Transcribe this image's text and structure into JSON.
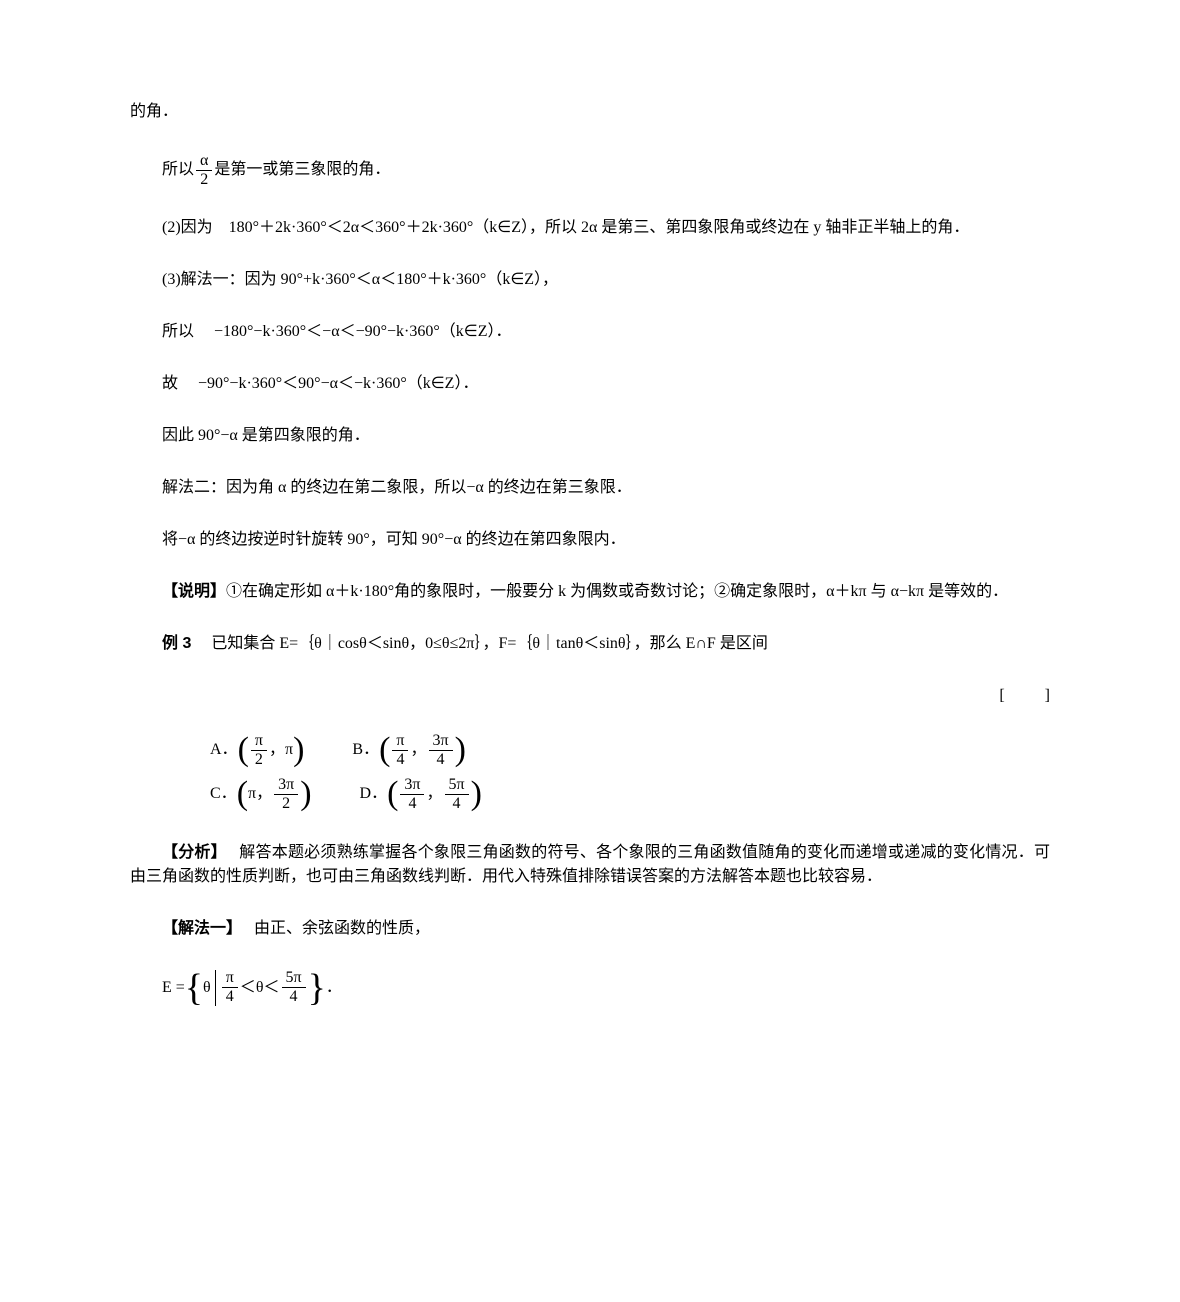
{
  "p1": "的角．",
  "mb1_prefix": "所以",
  "mb1_frac_num": "α",
  "mb1_frac_den": "2",
  "mb1_suffix": "是第一或第三象限的角．",
  "p2": "(2)因为　180°＋2k·360°＜2α＜360°＋2k·360°（k∈Z），所以 2α 是第三、第四象限角或终边在 y 轴非正半轴上的角．",
  "p3": "(3)解法一：因为 90°+k·360°＜α＜180°＋k·360°（k∈Z），",
  "p4": "所以　 −180°−k·360°＜−α＜−90°−k·360°（k∈Z）．",
  "p5": "故　 −90°−k·360°＜90°−α＜−k·360°（k∈Z）．",
  "p6": "因此 90°−α 是第四象限的角．",
  "p7": "解法二：因为角 α 的终边在第二象限，所以−α 的终边在第三象限．",
  "p8": "将−α 的终边按逆时针旋转 90°，可知 90°−α 的终边在第四象限内．",
  "p9_bold": "【说明】",
  "p9_rest": "①在确定形如 α＋k·180°角的象限时，一般要分 k 为偶数或奇数讨论；②确定象限时，α＋kπ 与 α−kπ 是等效的．",
  "ex3_label": "例 3",
  "ex3_body": "　 已知集合 E=｛θ｜cosθ＜sinθ，0≤θ≤2π｝，F=｛θ｜tanθ＜sinθ｝，那么 E∩F 是区间",
  "bracket": "[　 　 ]",
  "options": {
    "A": {
      "label": "A．",
      "left_num": "π",
      "left_den": "2",
      "right": "π"
    },
    "B": {
      "label": "B．",
      "left_num": "π",
      "left_den": "4",
      "right_num": "3π",
      "right_den": "4"
    },
    "C": {
      "label": "C．",
      "left": "π",
      "right_num": "3π",
      "right_den": "2"
    },
    "D": {
      "label": "D．",
      "left_num": "3π",
      "left_den": "4",
      "right_num": "5π",
      "right_den": "4"
    }
  },
  "p10_bold": "【分析】",
  "p10_rest": "　 解答本题必须熟练掌握各个象限三角函数的符号、各个象限的三角函数值随角的变化而递增或递减的变化情况．可由三角函数的性质判断，也可由三角函数线判断．用代入特殊值排除错误答案的方法解答本题也比较容易．",
  "p11_bold": "【解法一】",
  "p11_rest": "　 由正、余弦函数的性质，",
  "setE": {
    "prefix": "E = ",
    "theta": "θ",
    "left_num": "π",
    "left_den": "4",
    "lt1": "＜",
    "mid": "θ",
    "lt2": "＜",
    "right_num": "5π",
    "right_den": "4",
    "suffix": "．"
  }
}
